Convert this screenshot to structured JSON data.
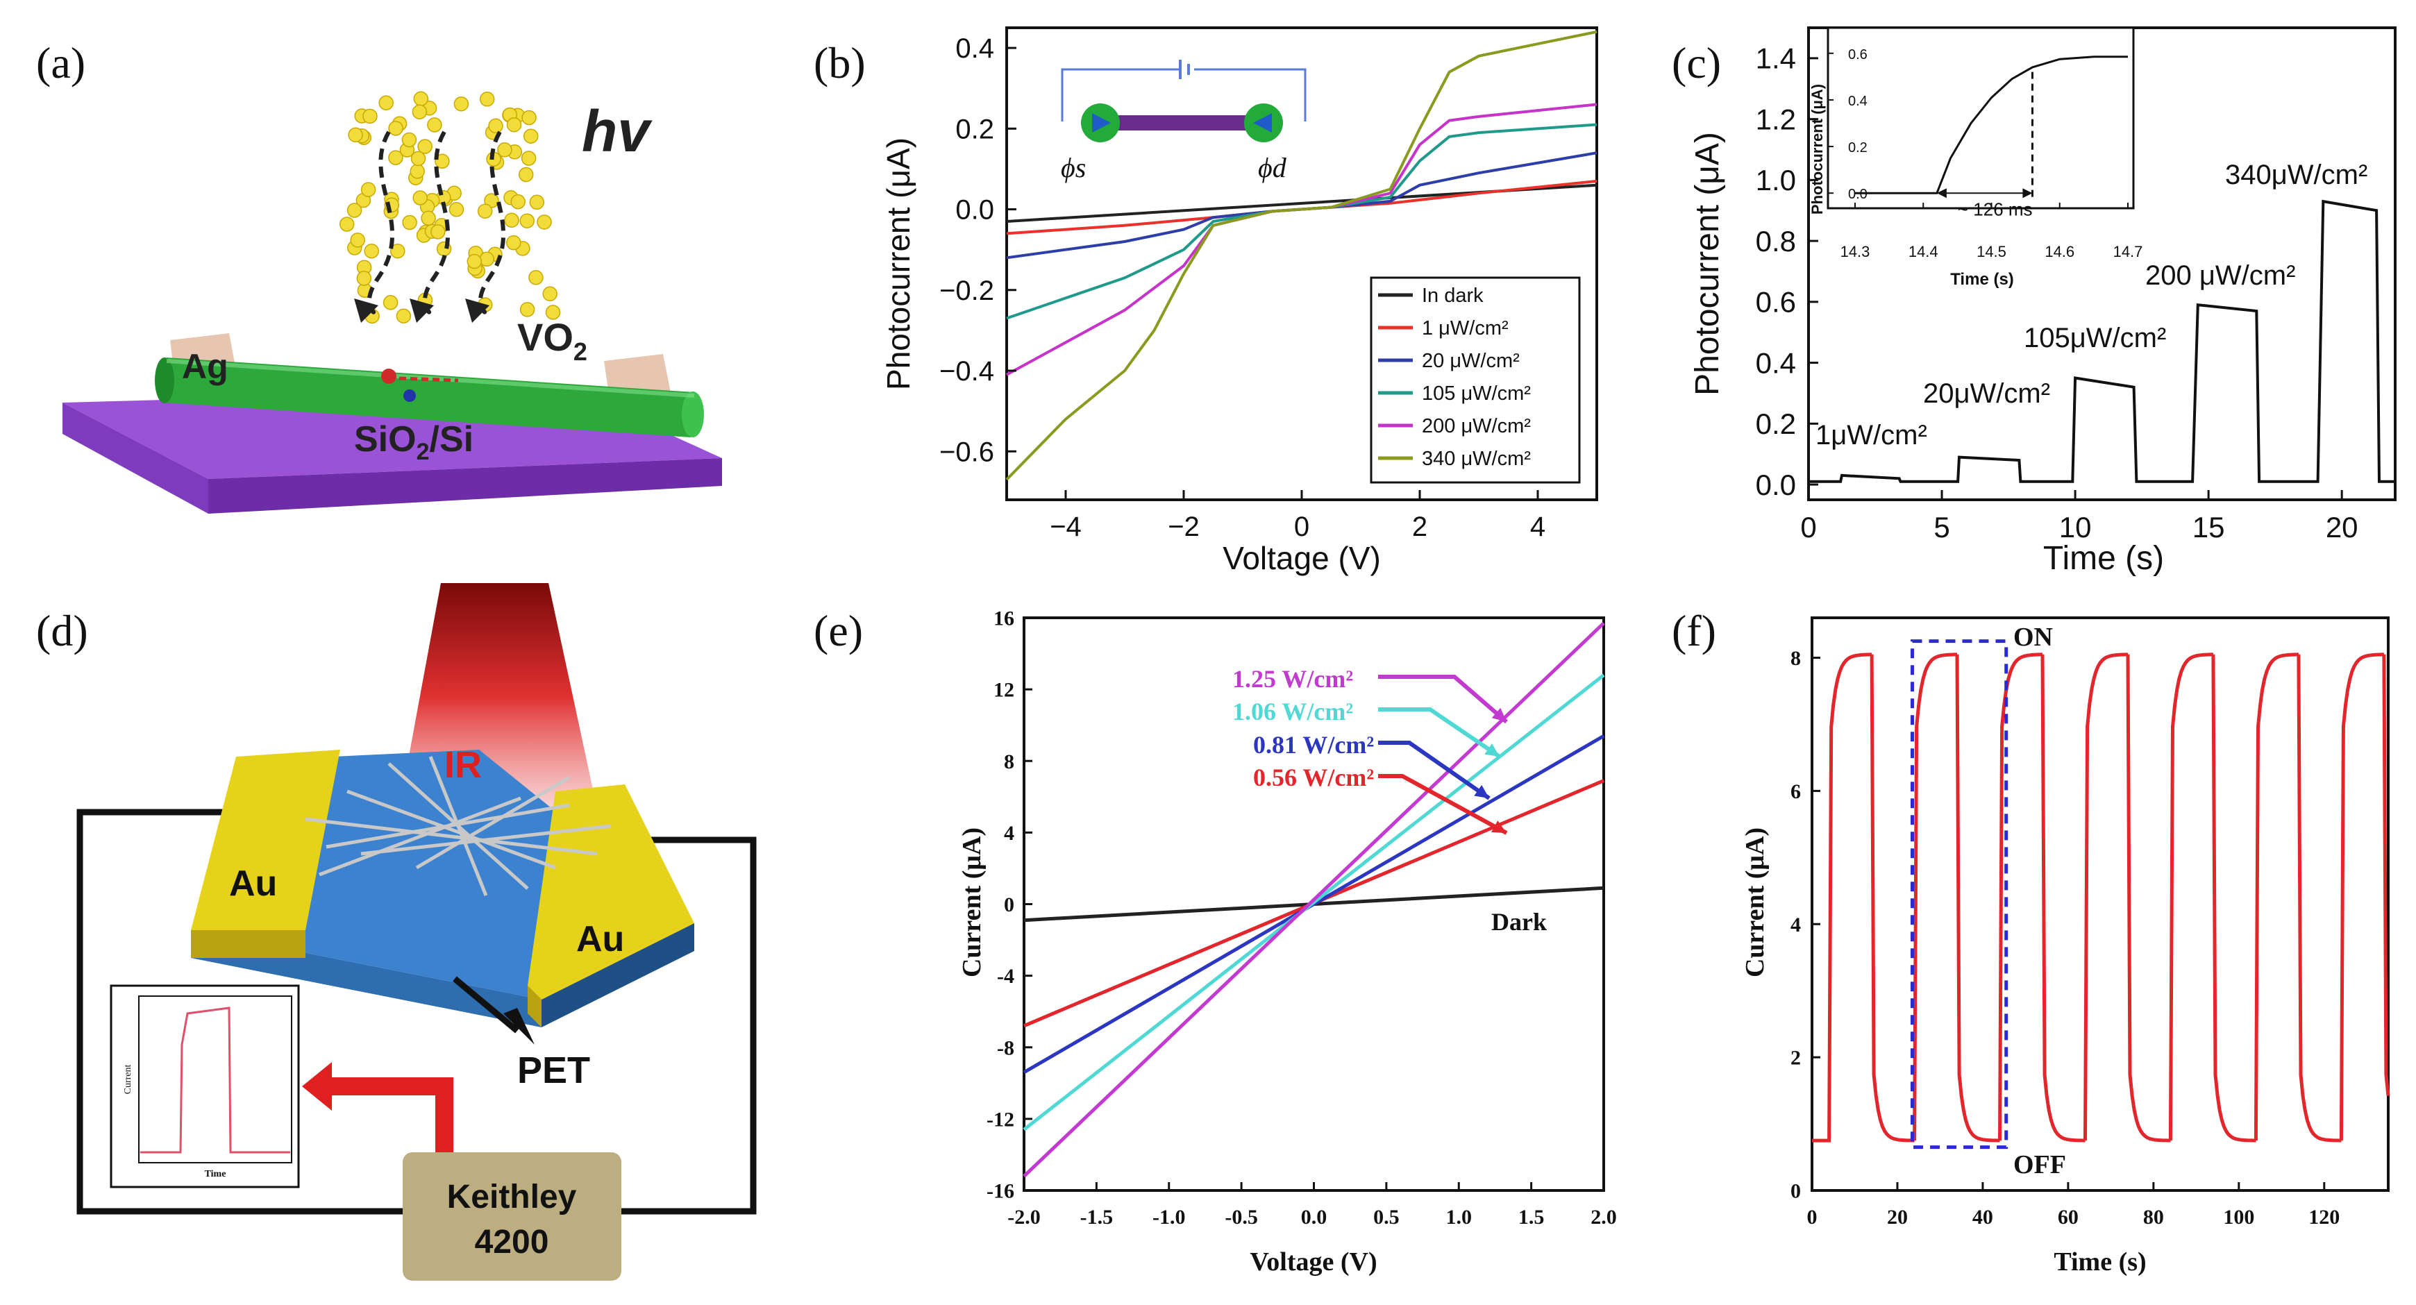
{
  "panels": {
    "a": {
      "label": "(a)",
      "hv": "hv",
      "ag": "Ag",
      "vo2": "VO",
      "vo2_sub": "2",
      "substrate": "SiO",
      "substrate_sub": "2",
      "substrate_tail": "/Si",
      "colors": {
        "substrate": "#8b3fc7",
        "wire": "#2fa33a",
        "contact": "#e8c9b5",
        "dots": "#f2dc3a"
      }
    },
    "d": {
      "label": "(d)",
      "ir": "IR",
      "au_left": "Au",
      "au_right": "Au",
      "pet": "PET",
      "instrument_line1": "Keithley",
      "instrument_line2": "4200",
      "inset_ylabel": "Current",
      "inset_xlabel": "Time",
      "colors": {
        "gold": "#e6d21a",
        "channel": "#2f7ed0",
        "instrument": "#b8aa7a",
        "arrow": "#e02020"
      }
    }
  },
  "chart_data": [
    {
      "panel": "(b)",
      "type": "line",
      "xlabel": "Voltage (V)",
      "ylabel": "Photocurrent (μA)",
      "xlim": [
        -5,
        5
      ],
      "ylim": [
        -0.72,
        0.45
      ],
      "xticks": [
        "−4",
        "−2",
        "0",
        "2",
        "4"
      ],
      "xtick_values": [
        -4,
        -2,
        0,
        2,
        4
      ],
      "yticks": [
        "0.4",
        "0.2",
        "0.0",
        "−0.2",
        "−0.4",
        "−0.6"
      ],
      "ytick_values": [
        0.4,
        0.2,
        0.0,
        -0.2,
        -0.4,
        -0.6
      ],
      "legend": [
        "In dark",
        "1   μW/cm²",
        "20  μW/cm²",
        "105 μW/cm²",
        "200 μW/cm²",
        "340 μW/cm²"
      ],
      "inset_labels": [
        "ϕs",
        "ϕd"
      ],
      "series": [
        {
          "name": "In dark",
          "color": "#222222",
          "x": [
            -5,
            5
          ],
          "y": [
            -0.03,
            0.06
          ]
        },
        {
          "name": "1 μW/cm²",
          "color": "#e8322b",
          "x": [
            -5,
            -3,
            -1.5,
            -0.5,
            0.5,
            1.5,
            3,
            5
          ],
          "y": [
            -0.06,
            -0.04,
            -0.02,
            -0.005,
            0.005,
            0.015,
            0.04,
            0.07
          ]
        },
        {
          "name": "20 μW/cm²",
          "color": "#2d3ea8",
          "x": [
            -5,
            -3,
            -2,
            -1.5,
            -0.5,
            0.5,
            1.5,
            2,
            3,
            5
          ],
          "y": [
            -0.12,
            -0.08,
            -0.05,
            -0.02,
            -0.005,
            0.005,
            0.02,
            0.06,
            0.09,
            0.14
          ]
        },
        {
          "name": "105 μW/cm²",
          "color": "#1f9a8a",
          "x": [
            -5,
            -3,
            -2,
            -1.5,
            -0.5,
            0.5,
            1.5,
            2,
            2.5,
            3,
            5
          ],
          "y": [
            -0.27,
            -0.17,
            -0.1,
            -0.03,
            -0.005,
            0.005,
            0.03,
            0.12,
            0.18,
            0.19,
            0.21
          ]
        },
        {
          "name": "200 μW/cm²",
          "color": "#c633c9",
          "x": [
            -5,
            -3,
            -2,
            -1.5,
            -0.5,
            0.5,
            1.5,
            2,
            2.5,
            3,
            5
          ],
          "y": [
            -0.41,
            -0.25,
            -0.14,
            -0.04,
            -0.005,
            0.005,
            0.04,
            0.16,
            0.22,
            0.23,
            0.26
          ]
        },
        {
          "name": "340 μW/cm²",
          "color": "#8a9a1e",
          "x": [
            -5,
            -4,
            -3,
            -2.5,
            -2,
            -1.5,
            -0.5,
            0.5,
            1.5,
            2,
            2.5,
            3,
            4,
            5
          ],
          "y": [
            -0.67,
            -0.52,
            -0.4,
            -0.3,
            -0.16,
            -0.04,
            -0.005,
            0.005,
            0.05,
            0.2,
            0.34,
            0.38,
            0.41,
            0.44
          ]
        }
      ]
    },
    {
      "panel": "(c)",
      "type": "line",
      "xlabel": "Time (s)",
      "ylabel": "Photocurrent (μA)",
      "xlim": [
        0,
        22
      ],
      "ylim": [
        -0.05,
        1.5
      ],
      "xticks": [
        "0",
        "5",
        "10",
        "15",
        "20"
      ],
      "xtick_values": [
        0,
        5,
        10,
        15,
        20
      ],
      "yticks": [
        "0.0",
        "0.2",
        "0.4",
        "0.6",
        "0.8",
        "1.0",
        "1.2",
        "1.4"
      ],
      "ytick_values": [
        0,
        0.2,
        0.4,
        0.6,
        0.8,
        1.0,
        1.2,
        1.4
      ],
      "annotations": [
        "1μW/cm²",
        "20μW/cm²",
        "105μW/cm²",
        "200 μW/cm²",
        "340μW/cm²"
      ],
      "series": [
        {
          "name": "photocurrent",
          "color": "#111111",
          "x": [
            0,
            1.2,
            1.25,
            3.4,
            3.45,
            5.6,
            5.65,
            7.9,
            7.95,
            9.9,
            10.0,
            12.2,
            12.3,
            14.4,
            14.6,
            16.8,
            16.9,
            19.1,
            19.3,
            21.3,
            21.4,
            22
          ],
          "y": [
            0.01,
            0.01,
            0.03,
            0.02,
            0.01,
            0.01,
            0.09,
            0.08,
            0.01,
            0.01,
            0.35,
            0.32,
            0.01,
            0.01,
            0.59,
            0.57,
            0.01,
            0.01,
            0.93,
            0.9,
            0.01,
            0.01
          ]
        }
      ],
      "inset": {
        "xlabel": "Time (s)",
        "ylabel": "Photocurrent (μA)",
        "xlim": [
          14.3,
          14.7
        ],
        "ylim": [
          -0.05,
          0.65
        ],
        "xticks": [
          "14.3",
          "14.4",
          "14.5",
          "14.6",
          "14.7"
        ],
        "xtick_values": [
          14.3,
          14.4,
          14.5,
          14.6,
          14.7
        ],
        "yticks": [
          "0.0",
          "0.2",
          "0.4",
          "0.6"
        ],
        "ytick_values": [
          0,
          0.2,
          0.4,
          0.6
        ],
        "annotation": "~ 126 ms",
        "x": [
          14.3,
          14.42,
          14.44,
          14.47,
          14.5,
          14.53,
          14.56,
          14.6,
          14.65,
          14.7
        ],
        "y": [
          0.0,
          0.0,
          0.15,
          0.3,
          0.41,
          0.49,
          0.54,
          0.575,
          0.585,
          0.585
        ]
      }
    },
    {
      "panel": "(e)",
      "type": "line",
      "xlabel": "Voltage (V)",
      "ylabel": "Current (μA)",
      "xlim": [
        -2,
        2
      ],
      "ylim": [
        -16,
        16
      ],
      "xticks": [
        "-2.0",
        "-1.5",
        "-1.0",
        "-0.5",
        "0.0",
        "0.5",
        "1.0",
        "1.5",
        "2.0"
      ],
      "xtick_values": [
        -2,
        -1.5,
        -1,
        -0.5,
        0,
        0.5,
        1,
        1.5,
        2
      ],
      "yticks": [
        "16",
        "12",
        "8",
        "4",
        "0",
        "-4",
        "-8",
        "-12",
        "-16"
      ],
      "ytick_values": [
        16,
        12,
        8,
        4,
        0,
        -4,
        -8,
        -12,
        -16
      ],
      "legend": [
        "1.25 W/cm²",
        "1.06 W/cm²",
        "0.81 W/cm²",
        "0.56 W/cm²",
        "Dark"
      ],
      "series": [
        {
          "name": "Dark",
          "color": "#222222",
          "x": [
            -2,
            2
          ],
          "y": [
            -0.9,
            0.9
          ]
        },
        {
          "name": "0.56 W/cm²",
          "color": "#e3262b",
          "x": [
            -2,
            2
          ],
          "y": [
            -6.8,
            6.9
          ]
        },
        {
          "name": "0.81 W/cm²",
          "color": "#2b37c0",
          "x": [
            -2,
            2
          ],
          "y": [
            -9.4,
            9.4
          ]
        },
        {
          "name": "1.06 W/cm²",
          "color": "#4fd8d4",
          "x": [
            -2,
            2
          ],
          "y": [
            -12.6,
            12.8
          ]
        },
        {
          "name": "1.25 W/cm²",
          "color": "#c23ad0",
          "x": [
            -2,
            2
          ],
          "y": [
            -15.2,
            15.7
          ]
        }
      ]
    },
    {
      "panel": "(f)",
      "type": "line",
      "xlabel": "Time (s)",
      "ylabel": "Current (μA)",
      "xlim": [
        0,
        135
      ],
      "ylim": [
        0,
        8.6
      ],
      "xticks": [
        "0",
        "20",
        "40",
        "60",
        "80",
        "100",
        "120"
      ],
      "xtick_values": [
        0,
        20,
        40,
        60,
        80,
        100,
        120
      ],
      "yticks": [
        "0",
        "2",
        "4",
        "6",
        "8"
      ],
      "ytick_values": [
        0,
        2,
        4,
        6,
        8
      ],
      "annotations": [
        "ON",
        "OFF"
      ],
      "on_times": [
        4,
        24,
        44,
        64,
        84,
        104,
        124
      ],
      "period_on": 10,
      "period_off": 10,
      "low": 0.75,
      "high": 8.05,
      "color": "#e3262b"
    }
  ]
}
